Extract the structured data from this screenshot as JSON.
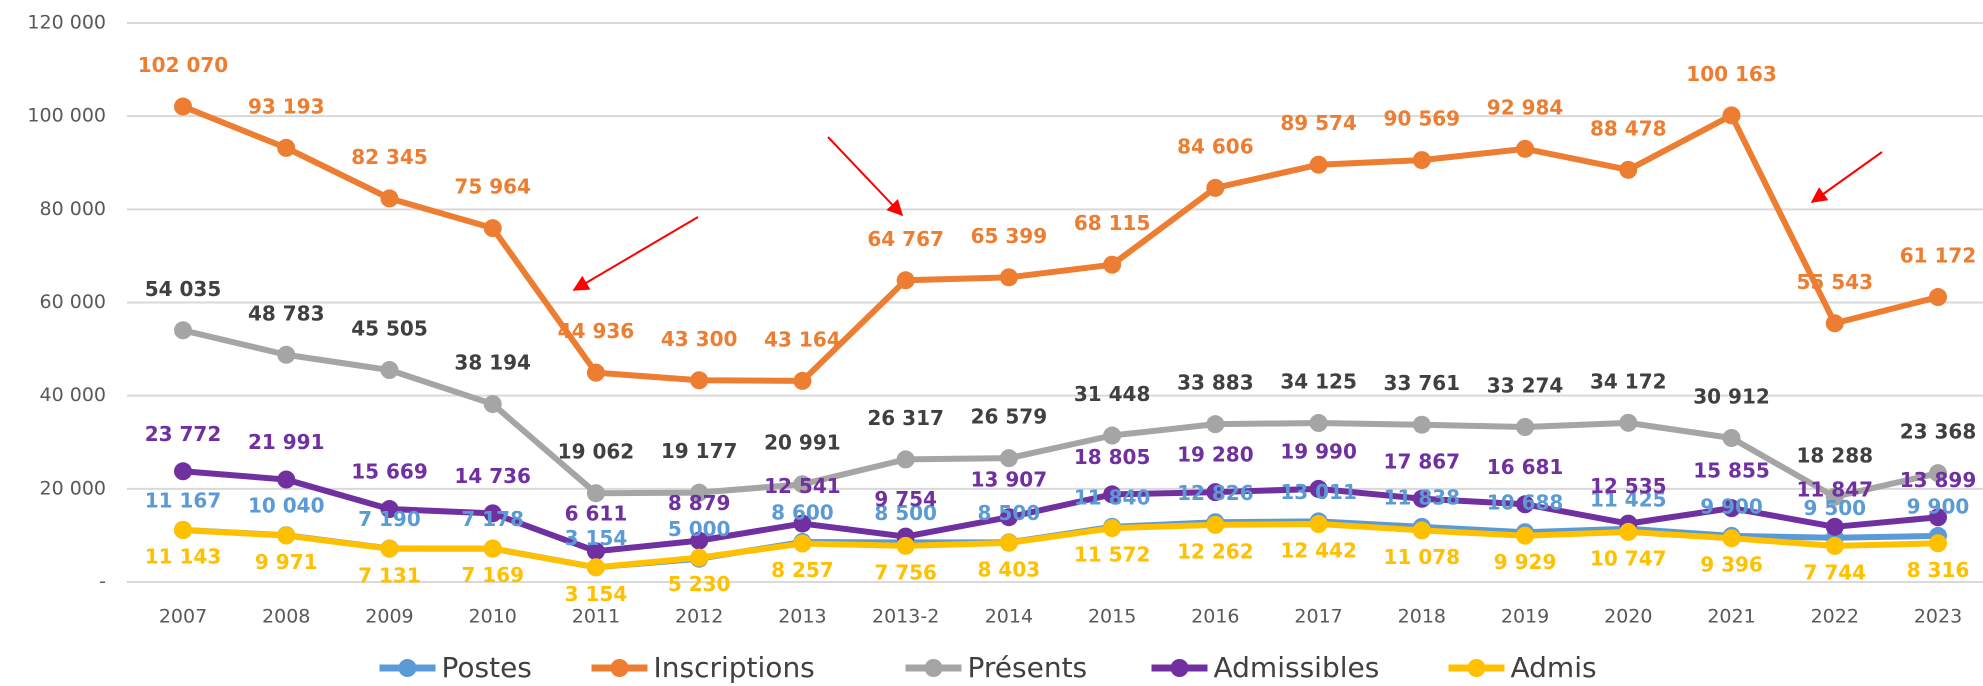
{
  "chart_data": {
    "type": "line",
    "categories": [
      "2007",
      "2008",
      "2009",
      "2010",
      "2011",
      "2012",
      "2013",
      "2013-2",
      "2014",
      "2015",
      "2016",
      "2017",
      "2018",
      "2019",
      "2020",
      "2021",
      "2022",
      "2023"
    ],
    "ylim": [
      0,
      120000
    ],
    "yticks": [
      {
        "value": 0,
        "label": "-"
      },
      {
        "value": 20000,
        "label": "20 000"
      },
      {
        "value": 40000,
        "label": "40 000"
      },
      {
        "value": 60000,
        "label": "60 000"
      },
      {
        "value": 80000,
        "label": "80 000"
      },
      {
        "value": 100000,
        "label": "100 000"
      },
      {
        "value": 120000,
        "label": "120 000"
      }
    ],
    "grid": true,
    "legend": "bottom",
    "series": [
      {
        "name": "Postes",
        "color": "#5b9bd5",
        "values": [
          11167,
          10040,
          7190,
          7178,
          3154,
          5000,
          8600,
          8500,
          8500,
          11840,
          12826,
          13011,
          11838,
          10688,
          11425,
          9900,
          9500,
          9900
        ],
        "value_labels": [
          "11 167",
          "10 040",
          "7 190",
          "7 178",
          "3 154",
          "5 000",
          "8 600",
          "8 500",
          "8 500",
          "11 840",
          "12 826",
          "13 011",
          "11 838",
          "10 688",
          "11 425",
          "9 900",
          "9 500",
          "9 900"
        ]
      },
      {
        "name": "Inscriptions",
        "color": "#ed7d31",
        "values": [
          102070,
          93193,
          82345,
          75964,
          44936,
          43300,
          43164,
          64767,
          65399,
          68115,
          84606,
          89574,
          90569,
          92984,
          88478,
          100163,
          55543,
          61172
        ],
        "value_labels": [
          "102 070",
          "93 193",
          "82 345",
          "75 964",
          "44 936",
          "43 300",
          "43 164",
          "64 767",
          "65 399",
          "68 115",
          "84 606",
          "89 574",
          "90 569",
          "92 984",
          "88 478",
          "100 163",
          "55 543",
          "61 172"
        ]
      },
      {
        "name": "Présents",
        "color": "#a5a5a5",
        "values": [
          54035,
          48783,
          45505,
          38194,
          19062,
          19177,
          20991,
          26317,
          26579,
          31448,
          33883,
          34125,
          33761,
          33274,
          34172,
          30912,
          18288,
          23368
        ],
        "value_labels": [
          "54 035",
          "48 783",
          "45 505",
          "38 194",
          "19 062",
          "19 177",
          "20 991",
          "26 317",
          "26 579",
          "31 448",
          "33 883",
          "34 125",
          "33 761",
          "33 274",
          "34 172",
          "30 912",
          "18 288",
          "23 368"
        ]
      },
      {
        "name": "Admissibles",
        "color": "#7030a0",
        "values": [
          23772,
          21991,
          15669,
          14736,
          6611,
          8879,
          12541,
          9754,
          13907,
          18805,
          19280,
          19990,
          17867,
          16681,
          12535,
          15855,
          11847,
          13899
        ],
        "value_labels": [
          "23 772",
          "21 991",
          "15 669",
          "14 736",
          "6 611",
          "8 879",
          "12 541",
          "9 754",
          "13 907",
          "18 805",
          "19 280",
          "19 990",
          "17 867",
          "16 681",
          "12 535",
          "15 855",
          "11 847",
          "13 899"
        ]
      },
      {
        "name": "Admis",
        "color": "#ffc000",
        "values": [
          11143,
          9971,
          7131,
          7169,
          3154,
          5230,
          8257,
          7756,
          8403,
          11572,
          12262,
          12442,
          11078,
          9929,
          10747,
          9396,
          7744,
          8316
        ],
        "value_labels": [
          "11 143",
          "9 971",
          "7 131",
          "7 169",
          "3 154",
          "5 230",
          "8 257",
          "7 756",
          "8 403",
          "11 572",
          "12 262",
          "12 442",
          "11 078",
          "9 929",
          "10 747",
          "9 396",
          "7 744",
          "8 316"
        ]
      }
    ]
  }
}
